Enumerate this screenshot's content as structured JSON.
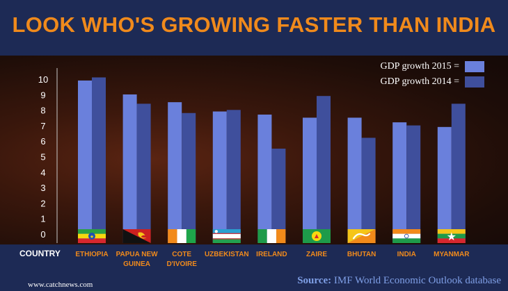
{
  "header": {
    "title": "LOOK WHO'S GROWING FASTER THAN INDIA"
  },
  "footer": {
    "website": "www.catchnews.com",
    "source_label": "Source:",
    "source_text": "IMF World Economic Outlook database"
  },
  "colors": {
    "series_2015": "#6a80dc",
    "series_2014": "#3f4f9c",
    "title": "#f08a1c",
    "header_bg": "#1d2a55",
    "category_label": "#f08a1c"
  },
  "chart_data": {
    "type": "bar",
    "title": "LOOK WHO'S GROWING FASTER THAN INDIA",
    "xlabel": "COUNTRY",
    "ylabel": "",
    "ylim": [
      0,
      10
    ],
    "yticks": [
      0,
      1,
      2,
      3,
      4,
      5,
      6,
      7,
      8,
      9,
      10
    ],
    "grid": false,
    "legend_position": "top-right",
    "categories": [
      [
        "ETHIOPIA"
      ],
      [
        "PAPUA NEW",
        "GUINEA"
      ],
      [
        "COTE",
        "D'IVOIRE"
      ],
      [
        "UZBEKISTAN"
      ],
      [
        "IRELAND"
      ],
      [
        "ZAIRE"
      ],
      [
        "BHUTAN"
      ],
      [
        "INDIA"
      ],
      [
        "MYANMAR"
      ]
    ],
    "flags": [
      "ethiopia-flag",
      "papua-new-guinea-flag",
      "cote-divoire-flag",
      "uzbekistan-flag",
      "ireland-flag",
      "zaire-flag",
      "bhutan-flag",
      "india-flag",
      "myanmar-flag"
    ],
    "series": [
      {
        "name": "GDP growth 2015 =",
        "values": [
          9.6,
          8.7,
          8.2,
          7.6,
          7.4,
          7.2,
          7.2,
          6.9,
          6.6
        ]
      },
      {
        "name": "GDP growth 2014 =",
        "values": [
          9.8,
          8.1,
          7.5,
          7.7,
          5.2,
          8.6,
          5.9,
          6.7,
          8.1
        ]
      }
    ]
  }
}
